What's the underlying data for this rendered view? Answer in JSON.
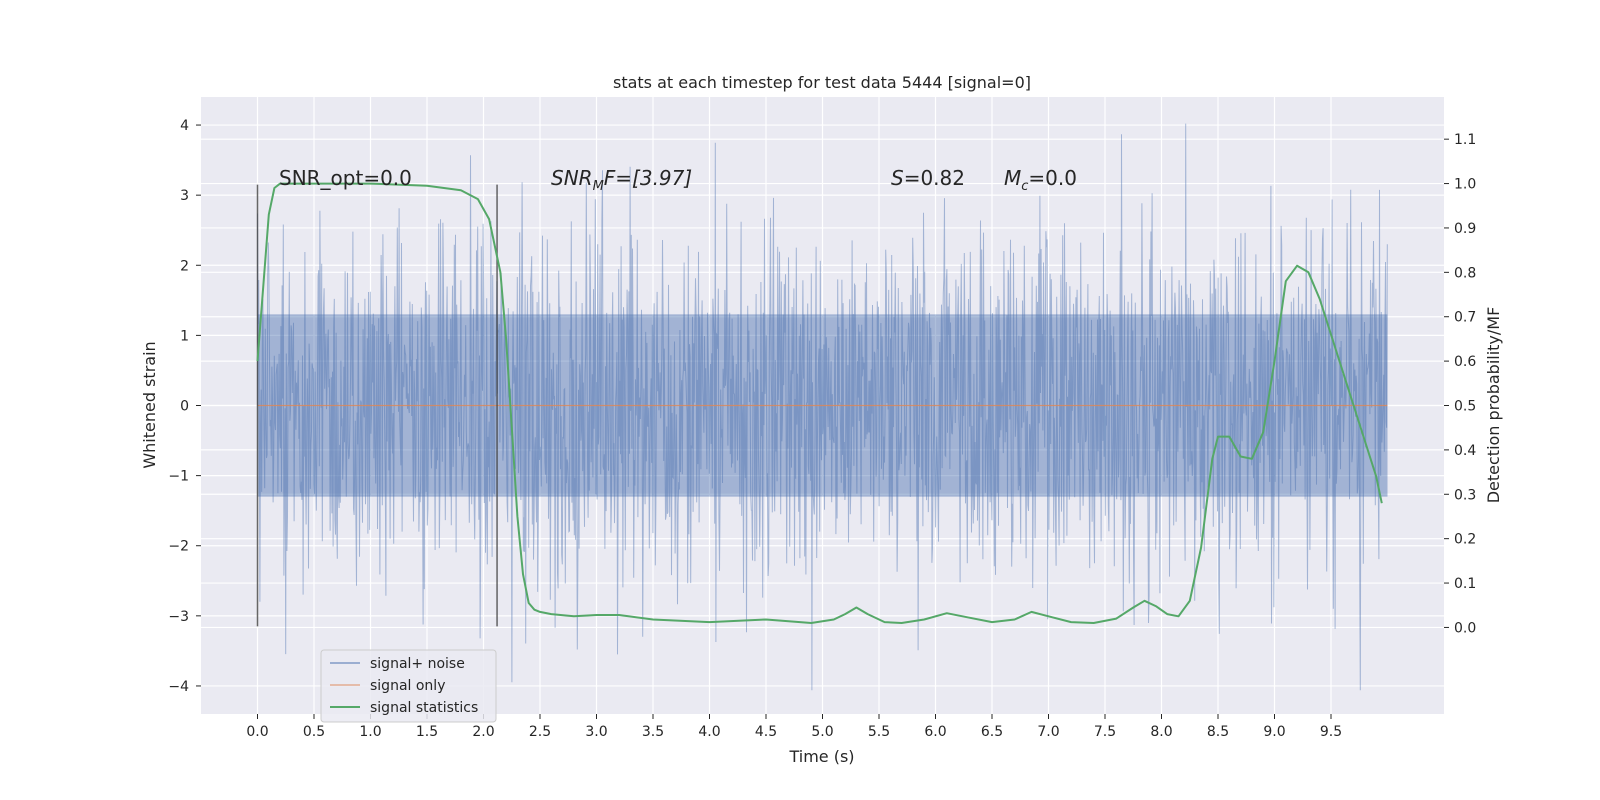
{
  "chart_data": {
    "type": "line",
    "title": "stats at each timestep for test data 5444 [signal=0]",
    "xlabel": "Time (s)",
    "ylabel": "Whitened strain",
    "y2label": "Detection probability/MF",
    "xlim": [
      -0.5,
      10.5
    ],
    "ylim": [
      -4.4,
      4.4
    ],
    "y2lim": [
      -0.195,
      1.195
    ],
    "x_ticks": [
      0.0,
      0.5,
      1.0,
      1.5,
      2.0,
      2.5,
      3.0,
      3.5,
      4.0,
      4.5,
      5.0,
      5.5,
      6.0,
      6.5,
      7.0,
      7.5,
      8.0,
      8.5,
      9.0,
      9.5
    ],
    "x_tick_labels": [
      "0.0",
      "0.5",
      "1.0",
      "1.5",
      "2.0",
      "2.5",
      "3.0",
      "3.5",
      "4.0",
      "4.5",
      "5.0",
      "5.5",
      "6.0",
      "6.5",
      "7.0",
      "7.5",
      "8.0",
      "8.5",
      "9.0",
      "9.5"
    ],
    "y_ticks": [
      -4,
      -3,
      -2,
      -1,
      0,
      1,
      2,
      3,
      4
    ],
    "y_tick_labels": [
      "−4",
      "−3",
      "−2",
      "−1",
      "0",
      "1",
      "2",
      "3",
      "4"
    ],
    "y2_ticks": [
      0.0,
      0.1,
      0.2,
      0.3,
      0.4,
      0.5,
      0.6,
      0.7,
      0.8,
      0.9,
      1.0,
      1.1
    ],
    "y2_tick_labels": [
      "0.0",
      "0.1",
      "0.2",
      "0.3",
      "0.4",
      "0.5",
      "0.6",
      "0.7",
      "0.8",
      "0.9",
      "1.0",
      "1.1"
    ],
    "grid": true,
    "legend_position": "lower-left",
    "series": [
      {
        "name": "signal+ noise",
        "color": "#4c72b0",
        "kind": "noise_band",
        "x_range": [
          0.0,
          10.0
        ],
        "typical_amplitude": 1.3,
        "max": 4.02,
        "min": -4.06
      },
      {
        "name": "signal only",
        "color": "#dd8452",
        "kind": "flat",
        "x": [
          0.0,
          10.0
        ],
        "y": [
          0.0,
          0.0
        ]
      },
      {
        "name": "signal statistics",
        "color": "#55a868",
        "kind": "line",
        "axis": "right",
        "x": [
          0.0,
          0.1,
          0.15,
          0.2,
          0.3,
          0.5,
          1.0,
          1.5,
          1.8,
          1.95,
          2.05,
          2.15,
          2.2,
          2.25,
          2.3,
          2.35,
          2.4,
          2.45,
          2.5,
          2.6,
          2.8,
          3.0,
          3.2,
          3.5,
          4.0,
          4.5,
          4.9,
          5.1,
          5.2,
          5.3,
          5.4,
          5.55,
          5.7,
          5.9,
          6.1,
          6.3,
          6.5,
          6.7,
          6.85,
          7.0,
          7.2,
          7.4,
          7.6,
          7.75,
          7.85,
          7.95,
          8.05,
          8.15,
          8.25,
          8.35,
          8.45,
          8.5,
          8.6,
          8.7,
          8.8,
          8.9,
          9.0,
          9.1,
          9.2,
          9.3,
          9.4,
          9.5,
          9.6,
          9.7,
          9.8,
          9.9,
          9.95
        ],
        "y": [
          0.6,
          0.93,
          0.99,
          1.0,
          1.0,
          1.0,
          1.0,
          0.995,
          0.985,
          0.965,
          0.92,
          0.8,
          0.65,
          0.45,
          0.25,
          0.12,
          0.055,
          0.04,
          0.035,
          0.03,
          0.025,
          0.028,
          0.028,
          0.018,
          0.012,
          0.018,
          0.01,
          0.018,
          0.03,
          0.045,
          0.03,
          0.012,
          0.01,
          0.018,
          0.032,
          0.022,
          0.012,
          0.018,
          0.035,
          0.025,
          0.012,
          0.01,
          0.02,
          0.045,
          0.06,
          0.048,
          0.03,
          0.025,
          0.06,
          0.18,
          0.38,
          0.43,
          0.43,
          0.385,
          0.38,
          0.44,
          0.6,
          0.78,
          0.815,
          0.8,
          0.74,
          0.66,
          0.58,
          0.5,
          0.42,
          0.34,
          0.28
        ]
      }
    ],
    "vertical_lines": [
      0.0,
      2.12
    ],
    "annotations": [
      {
        "key": "snr_opt",
        "text": "SNR_opt=0.0",
        "x": 0.2,
        "y": 3.0
      },
      {
        "key": "snr_mf",
        "text": "SNRₘF=[3.97]",
        "x": 2.6,
        "y": 3.0
      },
      {
        "key": "s",
        "text": "S=0.82",
        "x": 5.6,
        "y": 3.0
      },
      {
        "key": "mc",
        "text": "Mᴄ=0.0",
        "x": 6.6,
        "y": 3.0
      }
    ]
  },
  "annotations": {
    "snr_opt": "SNR_opt=0.0",
    "snr_mf_main": "SNR",
    "snr_mf_sub": "M",
    "snr_mf_rest": "F=[3.97]",
    "s_main": "S",
    "s_rest": "=0.82",
    "mc_main": "M",
    "mc_sub": "c",
    "mc_rest": "=0.0"
  },
  "legend": {
    "items": [
      "signal+ noise",
      "signal only",
      "signal statistics"
    ]
  }
}
